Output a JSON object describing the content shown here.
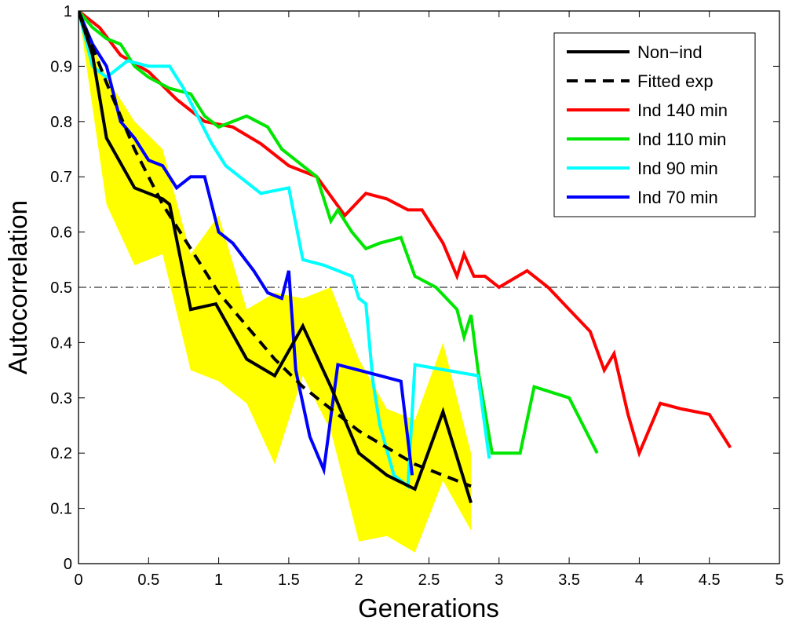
{
  "chart_data": {
    "type": "line",
    "xlabel": "Generations",
    "ylabel": "Autocorrelation",
    "xlim": [
      0,
      5
    ],
    "ylim": [
      0,
      1
    ],
    "xticks": [
      "0",
      "0.5",
      "1",
      "1.5",
      "2",
      "2.5",
      "3",
      "3.5",
      "4",
      "4.5",
      "5"
    ],
    "yticks": [
      "0",
      "0.1",
      "0.2",
      "0.3",
      "0.4",
      "0.5",
      "0.6",
      "0.7",
      "0.8",
      "0.9",
      "1"
    ],
    "legend_position": "top-right",
    "reference_line": {
      "y": 0.5,
      "style": "dash-dot",
      "color": "#000000"
    },
    "band": {
      "color": "#ffff00",
      "x": [
        0,
        0.2,
        0.4,
        0.6,
        0.8,
        1.0,
        1.2,
        1.4,
        1.6,
        1.8,
        2.0,
        2.2,
        2.4,
        2.6,
        2.8
      ],
      "upper": [
        1.0,
        0.88,
        0.8,
        0.75,
        0.56,
        0.63,
        0.46,
        0.49,
        0.48,
        0.5,
        0.37,
        0.28,
        0.26,
        0.4,
        0.2
      ],
      "lower": [
        1.0,
        0.65,
        0.54,
        0.56,
        0.35,
        0.33,
        0.29,
        0.18,
        0.34,
        0.24,
        0.04,
        0.05,
        0.02,
        0.15,
        0.06
      ]
    },
    "series": [
      {
        "name": "Non−ind",
        "color": "#000000",
        "style": "solid",
        "x": [
          0,
          0.1,
          0.2,
          0.4,
          0.6,
          0.65,
          0.8,
          0.98,
          1.2,
          1.4,
          1.6,
          1.8,
          2.0,
          2.2,
          2.4,
          2.6,
          2.8
        ],
        "y": [
          1.0,
          0.92,
          0.77,
          0.68,
          0.66,
          0.65,
          0.46,
          0.47,
          0.37,
          0.34,
          0.43,
          0.32,
          0.2,
          0.16,
          0.135,
          0.275,
          0.11
        ]
      },
      {
        "name": "Fitted exp",
        "color": "#000000",
        "style": "dashed",
        "x": [
          0,
          0.2,
          0.4,
          0.6,
          0.8,
          1.0,
          1.2,
          1.4,
          1.6,
          1.8,
          2.0,
          2.2,
          2.4,
          2.6,
          2.8
        ],
        "y": [
          1.0,
          0.87,
          0.75,
          0.65,
          0.57,
          0.49,
          0.43,
          0.37,
          0.32,
          0.28,
          0.24,
          0.21,
          0.18,
          0.16,
          0.14
        ]
      },
      {
        "name": "Ind 140 min",
        "color": "#ff0000",
        "style": "solid",
        "x": [
          0,
          0.15,
          0.3,
          0.5,
          0.7,
          0.9,
          1.1,
          1.3,
          1.5,
          1.7,
          1.9,
          2.05,
          2.2,
          2.35,
          2.45,
          2.6,
          2.7,
          2.75,
          2.82,
          2.9,
          3.0,
          3.2,
          3.35,
          3.5,
          3.65,
          3.75,
          3.82,
          3.92,
          4.0,
          4.15,
          4.3,
          4.5,
          4.65
        ],
        "y": [
          1.0,
          0.97,
          0.92,
          0.89,
          0.84,
          0.8,
          0.79,
          0.76,
          0.72,
          0.7,
          0.63,
          0.67,
          0.66,
          0.64,
          0.64,
          0.58,
          0.52,
          0.56,
          0.52,
          0.52,
          0.5,
          0.53,
          0.5,
          0.46,
          0.42,
          0.35,
          0.38,
          0.27,
          0.2,
          0.29,
          0.28,
          0.27,
          0.21
        ]
      },
      {
        "name": "Ind 110 min",
        "color": "#00e600",
        "style": "solid",
        "x": [
          0,
          0.1,
          0.2,
          0.3,
          0.4,
          0.5,
          0.65,
          0.8,
          0.9,
          1.0,
          1.1,
          1.2,
          1.35,
          1.45,
          1.55,
          1.7,
          1.8,
          1.85,
          1.95,
          2.05,
          2.15,
          2.3,
          2.4,
          2.55,
          2.7,
          2.75,
          2.8,
          2.85,
          2.95,
          3.05,
          3.15,
          3.25,
          3.5,
          3.7
        ],
        "y": [
          1.0,
          0.97,
          0.95,
          0.94,
          0.9,
          0.88,
          0.86,
          0.85,
          0.81,
          0.79,
          0.8,
          0.81,
          0.79,
          0.75,
          0.73,
          0.7,
          0.62,
          0.64,
          0.6,
          0.57,
          0.58,
          0.59,
          0.52,
          0.5,
          0.46,
          0.41,
          0.45,
          0.35,
          0.2,
          0.2,
          0.2,
          0.32,
          0.3,
          0.2
        ]
      },
      {
        "name": "Ind 90 min",
        "color": "#00ffff",
        "style": "solid",
        "x": [
          0,
          0.1,
          0.2,
          0.35,
          0.5,
          0.65,
          0.75,
          0.85,
          0.95,
          1.05,
          1.15,
          1.3,
          1.5,
          1.6,
          1.75,
          1.95,
          2.0,
          2.05,
          2.1,
          2.15,
          2.25,
          2.35,
          2.4,
          2.85,
          2.93
        ],
        "y": [
          1.0,
          0.9,
          0.88,
          0.91,
          0.9,
          0.9,
          0.86,
          0.81,
          0.76,
          0.72,
          0.7,
          0.67,
          0.68,
          0.55,
          0.54,
          0.52,
          0.48,
          0.47,
          0.33,
          0.25,
          0.16,
          0.14,
          0.36,
          0.34,
          0.19
        ]
      },
      {
        "name": "Ind 70 min",
        "color": "#0000ff",
        "style": "solid",
        "x": [
          0,
          0.1,
          0.2,
          0.3,
          0.4,
          0.5,
          0.6,
          0.7,
          0.8,
          0.9,
          1.0,
          1.1,
          1.25,
          1.35,
          1.45,
          1.5,
          1.55,
          1.65,
          1.75,
          1.85,
          2.0,
          2.15,
          2.3,
          2.38
        ],
        "y": [
          1.0,
          0.94,
          0.9,
          0.8,
          0.77,
          0.73,
          0.72,
          0.68,
          0.7,
          0.7,
          0.6,
          0.58,
          0.53,
          0.49,
          0.48,
          0.53,
          0.35,
          0.23,
          0.17,
          0.36,
          0.35,
          0.34,
          0.33,
          0.16
        ]
      }
    ]
  }
}
